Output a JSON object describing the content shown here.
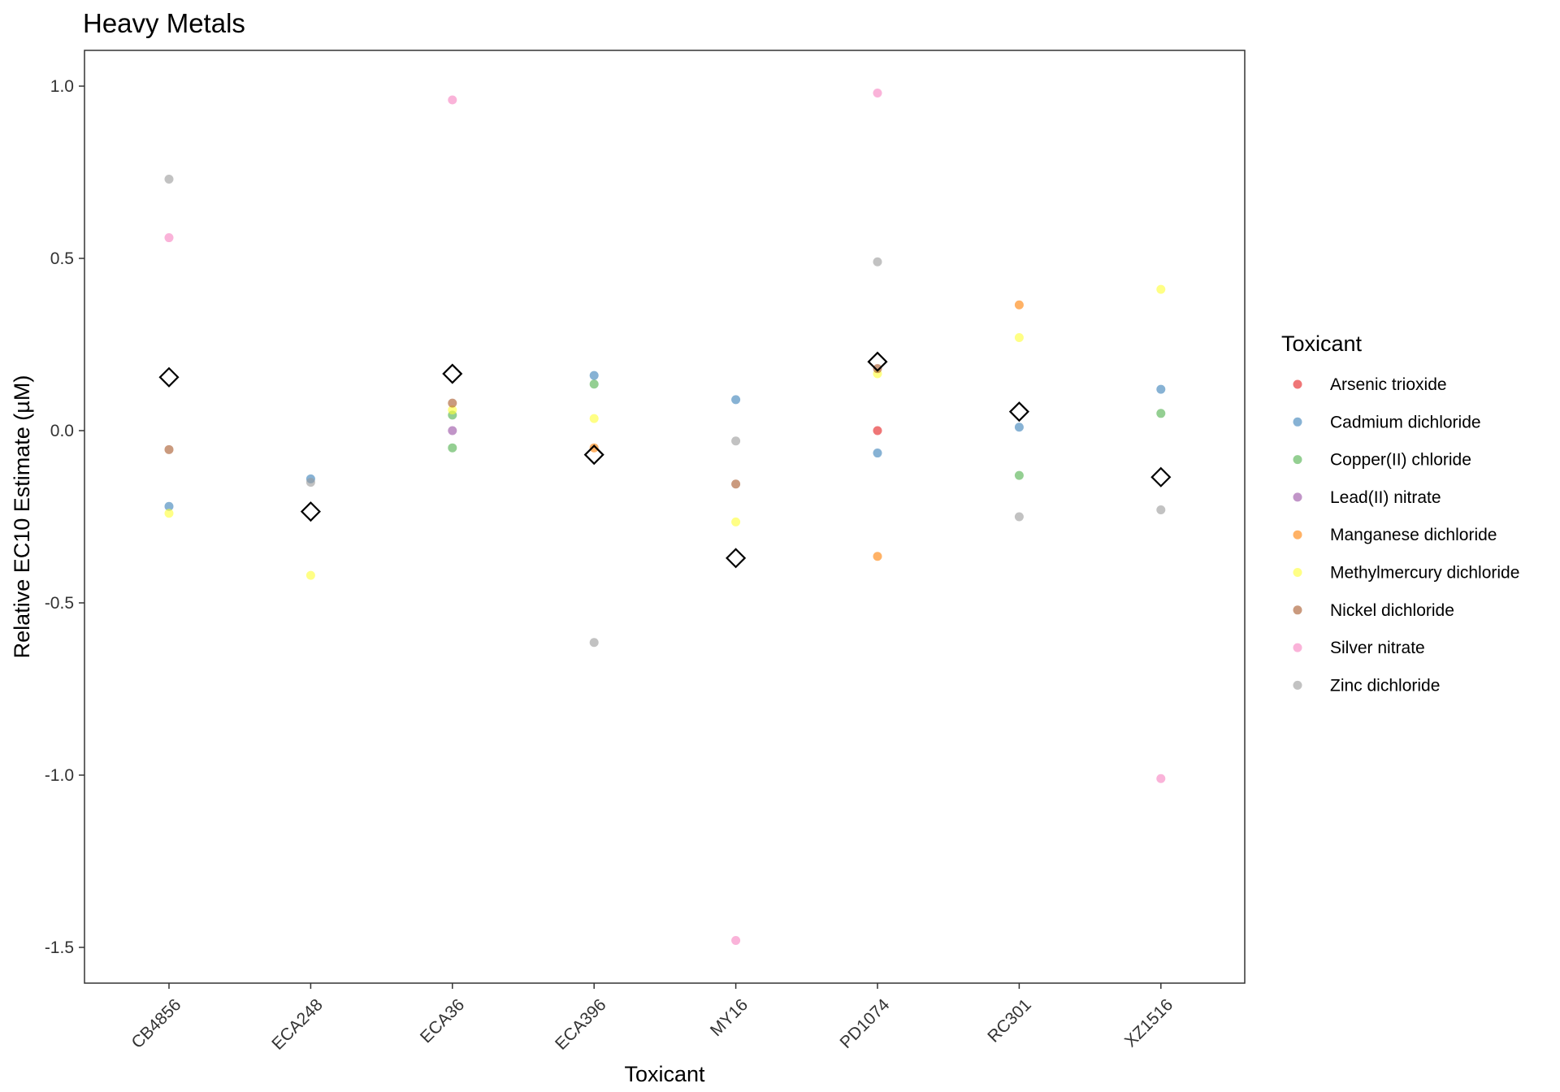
{
  "chart_data": {
    "type": "scatter",
    "title": "Heavy Metals",
    "xlabel": "Toxicant",
    "ylabel": "Relative EC10 Estimate (µM)",
    "categories": [
      "CB4856",
      "ECA248",
      "ECA36",
      "ECA396",
      "MY16",
      "PD1074",
      "RC301",
      "XZ1516"
    ],
    "y_ticks": [
      "1.0",
      "0.5",
      "0.0",
      "-0.5",
      "-1.0",
      "-1.5"
    ],
    "ylim": [
      -1.6,
      1.1
    ],
    "grid": false,
    "legend_title": "Toxicant",
    "legend_position": "right",
    "series": [
      {
        "name": "Arsenic trioxide",
        "color": "#E41A1C",
        "points": [
          [
            "PD1074",
            0.0
          ]
        ]
      },
      {
        "name": "Cadmium dichloride",
        "color": "#377EB8",
        "points": [
          [
            "CB4856",
            -0.22
          ],
          [
            "ECA248",
            -0.14
          ],
          [
            "ECA396",
            0.16
          ],
          [
            "MY16",
            0.09
          ],
          [
            "PD1074",
            -0.065
          ],
          [
            "RC301",
            0.01
          ],
          [
            "XZ1516",
            0.12
          ]
        ]
      },
      {
        "name": "Copper(II) chloride",
        "color": "#4DAF4A",
        "points": [
          [
            "ECA36",
            0.045
          ],
          [
            "ECA36",
            -0.05
          ],
          [
            "ECA396",
            0.135
          ],
          [
            "RC301",
            -0.13
          ],
          [
            "XZ1516",
            0.05
          ]
        ]
      },
      {
        "name": "Lead(II) nitrate",
        "color": "#984EA3",
        "points": [
          [
            "ECA36",
            0.0
          ]
        ]
      },
      {
        "name": "Manganese dichloride",
        "color": "#FF7F00",
        "points": [
          [
            "ECA396",
            -0.05
          ],
          [
            "PD1074",
            -0.365
          ],
          [
            "RC301",
            0.365
          ]
        ]
      },
      {
        "name": "Methylmercury dichloride",
        "color": "#FFFF33",
        "points": [
          [
            "CB4856",
            -0.24
          ],
          [
            "ECA248",
            -0.42
          ],
          [
            "ECA36",
            0.06
          ],
          [
            "ECA396",
            0.035
          ],
          [
            "MY16",
            -0.265
          ],
          [
            "PD1074",
            0.165
          ],
          [
            "RC301",
            0.27
          ],
          [
            "XZ1516",
            0.41
          ]
        ]
      },
      {
        "name": "Nickel dichloride",
        "color": "#A65628",
        "points": [
          [
            "CB4856",
            -0.055
          ],
          [
            "ECA36",
            0.08
          ],
          [
            "MY16",
            -0.155
          ],
          [
            "PD1074",
            0.18
          ]
        ]
      },
      {
        "name": "Silver nitrate",
        "color": "#F781BF",
        "points": [
          [
            "CB4856",
            0.56
          ],
          [
            "ECA36",
            0.96
          ],
          [
            "MY16",
            -1.48
          ],
          [
            "PD1074",
            0.98
          ],
          [
            "XZ1516",
            -1.01
          ]
        ]
      },
      {
        "name": "Zinc dichloride",
        "color": "#999999",
        "points": [
          [
            "CB4856",
            0.73
          ],
          [
            "ECA248",
            -0.15
          ],
          [
            "ECA396",
            -0.615
          ],
          [
            "MY16",
            -0.03
          ],
          [
            "PD1074",
            0.49
          ],
          [
            "RC301",
            -0.25
          ],
          [
            "XZ1516",
            -0.23
          ]
        ]
      }
    ],
    "means": [
      {
        "category": "CB4856",
        "value": 0.155
      },
      {
        "category": "ECA248",
        "value": -0.235
      },
      {
        "category": "ECA36",
        "value": 0.165
      },
      {
        "category": "ECA396",
        "value": -0.07
      },
      {
        "category": "MY16",
        "value": -0.37
      },
      {
        "category": "PD1074",
        "value": 0.2
      },
      {
        "category": "RC301",
        "value": 0.055
      },
      {
        "category": "XZ1516",
        "value": -0.135
      }
    ]
  }
}
